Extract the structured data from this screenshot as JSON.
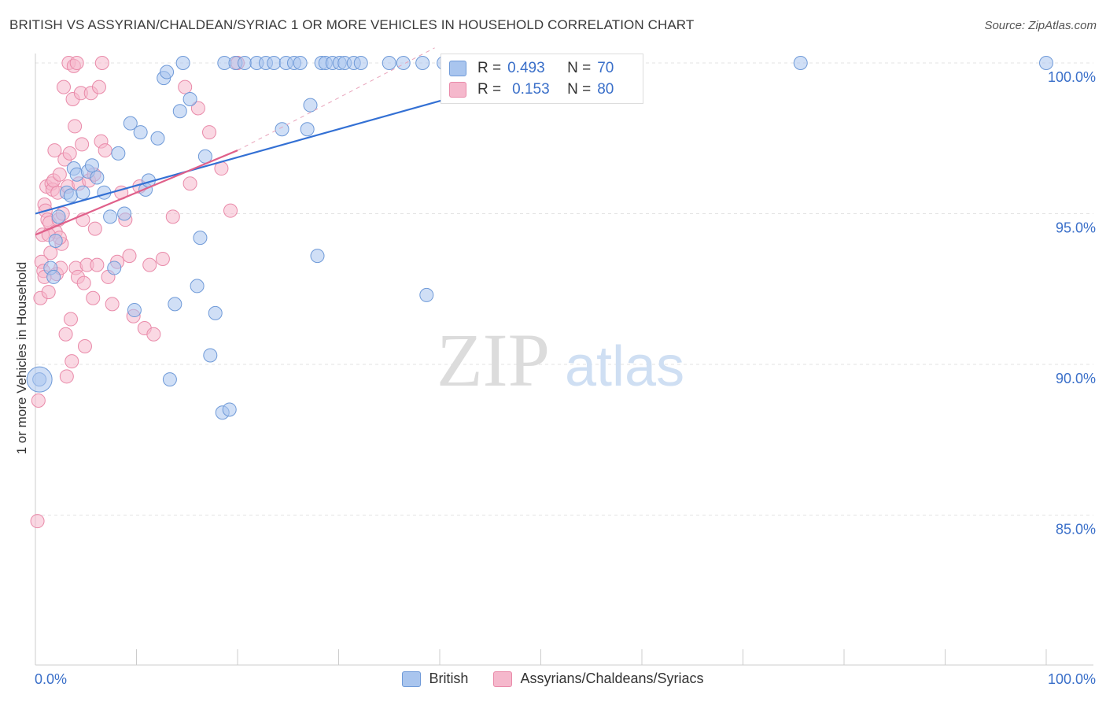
{
  "title": "BRITISH VS ASSYRIAN/CHALDEAN/SYRIAC 1 OR MORE VEHICLES IN HOUSEHOLD CORRELATION CHART",
  "source": "Source: ZipAtlas.com",
  "watermark": {
    "zip": "ZIP",
    "atlas": "atlas"
  },
  "colors": {
    "british_fill": "#a9c5ee",
    "british_stroke": "#6f9ad8",
    "british_line": "#3370d4",
    "assyrian_fill": "#f5b8cc",
    "assyrian_stroke": "#e98aa9",
    "assyrian_line": "#e0608a",
    "tick_label": "#3a6fc9"
  },
  "stats": [
    {
      "r_label": "R =",
      "r_value": "0.493",
      "n_label": "N =",
      "n_value": "70"
    },
    {
      "r_label": "R =",
      "r_value": "0.153",
      "n_label": "N =",
      "n_value": "80"
    }
  ],
  "legend": [
    "British",
    "Assyrians/Chaldeans/Syriacs"
  ],
  "chart_data": {
    "type": "scatter",
    "title": "BRITISH VS ASSYRIAN/CHALDEAN/SYRIAC 1 OR MORE VEHICLES IN HOUSEHOLD CORRELATION CHART",
    "xlabel": "",
    "ylabel": "1 or more Vehicles in Household",
    "xlim": [
      0,
      100
    ],
    "ylim": [
      80.5,
      100.5
    ],
    "x_tick_labels": [
      {
        "value": 0,
        "label": "0.0%"
      },
      {
        "value": 100,
        "label": "100.0%"
      }
    ],
    "y_tick_labels": [
      {
        "value": 85,
        "label": "85.0%"
      },
      {
        "value": 90,
        "label": "90.0%"
      },
      {
        "value": 95,
        "label": "95.0%"
      },
      {
        "value": 100,
        "label": "100.0%"
      }
    ],
    "grid": true,
    "legend_position": "bottom",
    "series": [
      {
        "name": "British",
        "points": [
          [
            0.4,
            89.5
          ],
          [
            1.5,
            93.2
          ],
          [
            1.8,
            92.9
          ],
          [
            2.0,
            94.1
          ],
          [
            2.3,
            94.9
          ],
          [
            3.1,
            95.7
          ],
          [
            3.5,
            95.6
          ],
          [
            3.8,
            96.5
          ],
          [
            4.1,
            96.3
          ],
          [
            4.7,
            95.7
          ],
          [
            5.2,
            96.4
          ],
          [
            5.6,
            96.6
          ],
          [
            6.1,
            96.2
          ],
          [
            6.8,
            95.7
          ],
          [
            7.4,
            94.9
          ],
          [
            7.8,
            93.2
          ],
          [
            8.2,
            97.0
          ],
          [
            8.8,
            95.0
          ],
          [
            9.4,
            98.0
          ],
          [
            9.8,
            91.8
          ],
          [
            10.4,
            97.7
          ],
          [
            10.9,
            95.8
          ],
          [
            11.2,
            96.1
          ],
          [
            12.1,
            97.5
          ],
          [
            12.7,
            99.5
          ],
          [
            13.0,
            99.7
          ],
          [
            13.3,
            89.5
          ],
          [
            13.8,
            92.0
          ],
          [
            14.3,
            98.4
          ],
          [
            14.6,
            100.0
          ],
          [
            15.3,
            98.8
          ],
          [
            16.0,
            92.6
          ],
          [
            16.3,
            94.2
          ],
          [
            16.8,
            96.9
          ],
          [
            17.3,
            90.3
          ],
          [
            17.8,
            91.7
          ],
          [
            18.5,
            88.4
          ],
          [
            19.2,
            88.5
          ],
          [
            18.7,
            100.0
          ],
          [
            19.8,
            100.0
          ],
          [
            20.7,
            100.0
          ],
          [
            21.9,
            100.0
          ],
          [
            22.8,
            100.0
          ],
          [
            23.6,
            100.0
          ],
          [
            24.4,
            97.8
          ],
          [
            24.8,
            100.0
          ],
          [
            25.6,
            100.0
          ],
          [
            26.2,
            100.0
          ],
          [
            26.9,
            97.8
          ],
          [
            27.2,
            98.6
          ],
          [
            27.9,
            93.6
          ],
          [
            28.3,
            100.0
          ],
          [
            28.7,
            100.0
          ],
          [
            29.4,
            100.0
          ],
          [
            30.1,
            100.0
          ],
          [
            30.6,
            100.0
          ],
          [
            31.5,
            100.0
          ],
          [
            32.2,
            100.0
          ],
          [
            35.0,
            100.0
          ],
          [
            38.3,
            100.0
          ],
          [
            38.7,
            92.3
          ],
          [
            42.7,
            100.0
          ],
          [
            48.3,
            100.0
          ],
          [
            50.2,
            100.0
          ],
          [
            52.0,
            100.0
          ],
          [
            56.7,
            100.0
          ],
          [
            75.7,
            100.0
          ],
          [
            100.0,
            100.0
          ],
          [
            36.4,
            100.0
          ],
          [
            40.4,
            100.0
          ]
        ],
        "trend": {
          "x": [
            0,
            53.5
          ],
          "y": [
            95.0,
            100.0
          ]
        }
      },
      {
        "name": "Assyrians/Chaldeans/Syriacs",
        "points": [
          [
            0.2,
            84.8
          ],
          [
            0.3,
            88.8
          ],
          [
            0.5,
            92.2
          ],
          [
            0.6,
            93.4
          ],
          [
            0.7,
            94.3
          ],
          [
            0.8,
            93.1
          ],
          [
            0.9,
            95.3
          ],
          [
            1.0,
            95.1
          ],
          [
            1.1,
            95.9
          ],
          [
            1.2,
            94.8
          ],
          [
            1.3,
            92.4
          ],
          [
            1.4,
            94.7
          ],
          [
            1.5,
            93.7
          ],
          [
            1.6,
            96.0
          ],
          [
            1.7,
            95.8
          ],
          [
            1.8,
            96.1
          ],
          [
            1.9,
            97.1
          ],
          [
            2.0,
            94.4
          ],
          [
            2.1,
            93.0
          ],
          [
            2.2,
            95.7
          ],
          [
            2.3,
            94.8
          ],
          [
            2.4,
            96.3
          ],
          [
            2.5,
            93.2
          ],
          [
            2.6,
            94.0
          ],
          [
            2.7,
            95.0
          ],
          [
            2.8,
            99.2
          ],
          [
            2.9,
            96.8
          ],
          [
            3.0,
            91.0
          ],
          [
            3.1,
            89.6
          ],
          [
            3.2,
            95.9
          ],
          [
            3.3,
            100.0
          ],
          [
            3.4,
            97.0
          ],
          [
            3.5,
            91.5
          ],
          [
            3.6,
            90.1
          ],
          [
            3.7,
            98.8
          ],
          [
            3.8,
            99.9
          ],
          [
            3.9,
            97.9
          ],
          [
            4.0,
            93.2
          ],
          [
            4.1,
            100.0
          ],
          [
            4.2,
            92.9
          ],
          [
            4.3,
            96.0
          ],
          [
            4.5,
            99.0
          ],
          [
            4.6,
            97.3
          ],
          [
            4.7,
            94.8
          ],
          [
            4.8,
            92.7
          ],
          [
            4.9,
            90.6
          ],
          [
            5.1,
            93.3
          ],
          [
            5.3,
            96.1
          ],
          [
            5.5,
            99.0
          ],
          [
            5.7,
            92.2
          ],
          [
            5.9,
            94.5
          ],
          [
            6.1,
            93.3
          ],
          [
            6.3,
            99.2
          ],
          [
            6.5,
            97.4
          ],
          [
            6.9,
            97.1
          ],
          [
            7.2,
            92.9
          ],
          [
            7.6,
            92.0
          ],
          [
            8.1,
            93.4
          ],
          [
            8.5,
            95.7
          ],
          [
            8.9,
            94.8
          ],
          [
            9.3,
            93.6
          ],
          [
            9.7,
            91.6
          ],
          [
            10.3,
            95.9
          ],
          [
            10.8,
            91.2
          ],
          [
            11.3,
            93.3
          ],
          [
            11.7,
            91.0
          ],
          [
            12.6,
            93.5
          ],
          [
            13.6,
            94.9
          ],
          [
            14.8,
            99.2
          ],
          [
            15.3,
            96.0
          ],
          [
            16.1,
            98.5
          ],
          [
            17.2,
            97.7
          ],
          [
            18.4,
            96.5
          ],
          [
            19.3,
            95.1
          ],
          [
            20.0,
            100.0
          ],
          [
            5.8,
            96.3
          ],
          [
            6.6,
            100.0
          ],
          [
            2.4,
            94.2
          ],
          [
            1.3,
            94.3
          ],
          [
            0.9,
            92.9
          ]
        ],
        "trend": {
          "x": [
            0,
            20
          ],
          "y": [
            94.3,
            97.1
          ]
        }
      }
    ]
  }
}
